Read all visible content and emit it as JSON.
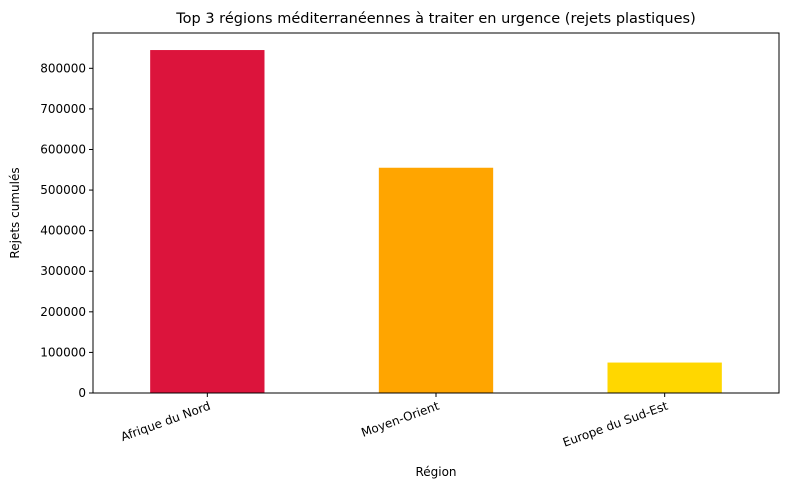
{
  "chart_data": {
    "type": "bar",
    "title": "Top 3 régions méditerranéennes à traiter en urgence (rejets plastiques)",
    "xlabel": "Région",
    "ylabel": "Rejets cumulés",
    "categories": [
      "Afrique du Nord",
      "Moyen-Orient",
      "Europe du Sud-Est"
    ],
    "values": [
      845000,
      555000,
      75000
    ],
    "colors": [
      "#dc143c",
      "#ffa500",
      "#ffd700"
    ],
    "ylim": [
      0,
      887000
    ],
    "yticks": [
      0,
      100000,
      200000,
      300000,
      400000,
      500000,
      600000,
      700000,
      800000
    ],
    "ytick_labels": [
      "0",
      "100000",
      "200000",
      "300000",
      "400000",
      "500000",
      "600000",
      "700000",
      "800000"
    ],
    "grid": false,
    "legend": "none"
  }
}
